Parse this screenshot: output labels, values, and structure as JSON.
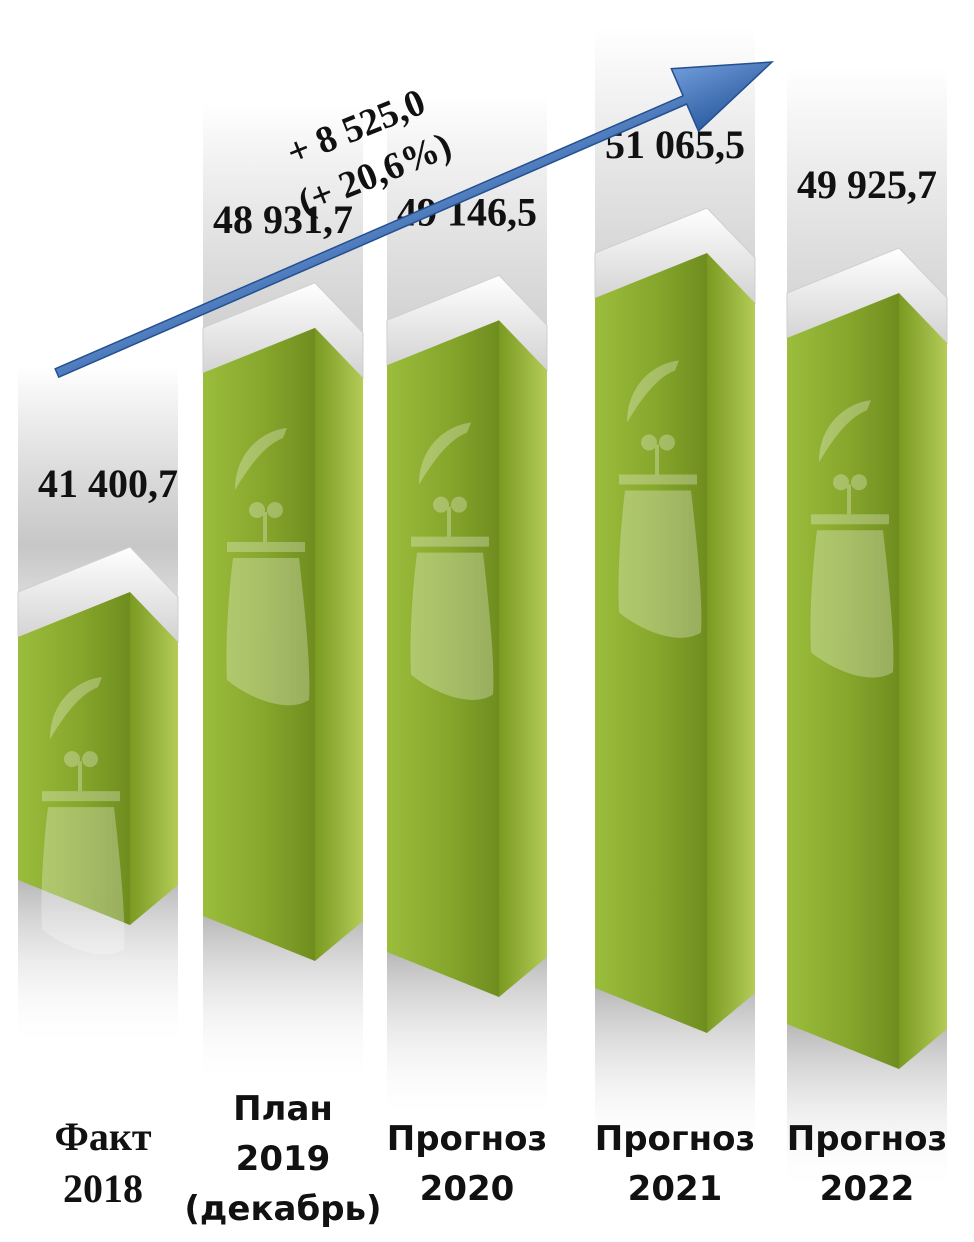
{
  "chart_data": {
    "type": "bar",
    "title": "",
    "xlabel": "",
    "ylabel": "",
    "categories": [
      [
        "Факт",
        "2018"
      ],
      [
        "План",
        "2019",
        "(декабрь)"
      ],
      [
        "Прогноз",
        "2020"
      ],
      [
        "Прогноз",
        "2021"
      ],
      [
        "Прогноз",
        "2022"
      ]
    ],
    "values": [
      41400.7,
      48931.7,
      49146.5,
      51065.5,
      49925.7
    ],
    "value_labels": [
      "41 400,7",
      "48 931,7",
      "49 146,5",
      "51 065,5",
      "49 925,7"
    ],
    "annotation": {
      "line1": "+ 8 525,0",
      "line2": "(+ 20,6%)"
    },
    "bar_color": "#8aa832",
    "bar_side_color": "#a9c24d",
    "arrow_color": "#4a7cc0",
    "background_column_color": "#c8c8c8"
  }
}
